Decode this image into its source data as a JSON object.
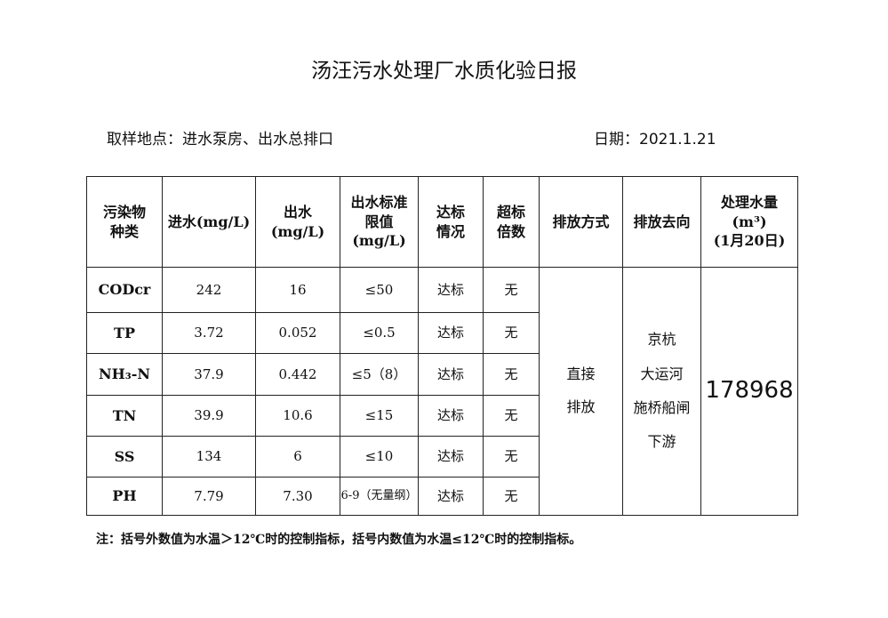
{
  "title": "汤汪污水处理厂水质化验日报",
  "location": "取样地点：进水泵房、出水总排口",
  "date": "日期：2021.1.21",
  "headers": {
    "pollutant": [
      "污染物",
      "种类"
    ],
    "inflow": "进水(mg/L)",
    "outflow": [
      "出水",
      "(mg/L)"
    ],
    "limit": [
      "出水标准",
      "限值",
      "(mg/L)"
    ],
    "status": [
      "达标",
      "情况"
    ],
    "exceed": [
      "超标",
      "倍数"
    ],
    "method": "排放方式",
    "destination": "排放去向",
    "volume": [
      "处理水量",
      "(m³)",
      "(1月20日)"
    ]
  },
  "rows": [
    {
      "pollutant": "CODcr",
      "inflow": "242",
      "outflow": "16",
      "limit": "≤50",
      "status": "达标",
      "exceed": "无"
    },
    {
      "pollutant": "TP",
      "inflow": "3.72",
      "outflow": "0.052",
      "limit": "≤0.5",
      "status": "达标",
      "exceed": "无"
    },
    {
      "pollutant": "NH₃-N",
      "inflow": "37.9",
      "outflow": "0.442",
      "limit": "≤5（8）",
      "status": "达标",
      "exceed": "无"
    },
    {
      "pollutant": "TN",
      "inflow": "39.9",
      "outflow": "10.6",
      "limit": "≤15",
      "status": "达标",
      "exceed": "无"
    },
    {
      "pollutant": "SS",
      "inflow": "134",
      "outflow": "6",
      "limit": "≤10",
      "status": "达标",
      "exceed": "无"
    },
    {
      "pollutant": "PH",
      "inflow": "7.79",
      "outflow": "7.30",
      "limit": "6-9（无量纲）",
      "status": "达标",
      "exceed": "无"
    }
  ],
  "method": [
    "直接",
    "排放"
  ],
  "destination": [
    "京杭",
    "大运河",
    "施桥船闸",
    "下游"
  ],
  "volume": "178968",
  "note": "注：括号外数值为水温＞12℃时的控制指标，括号内数值为水温≤12℃时的控制指标。"
}
